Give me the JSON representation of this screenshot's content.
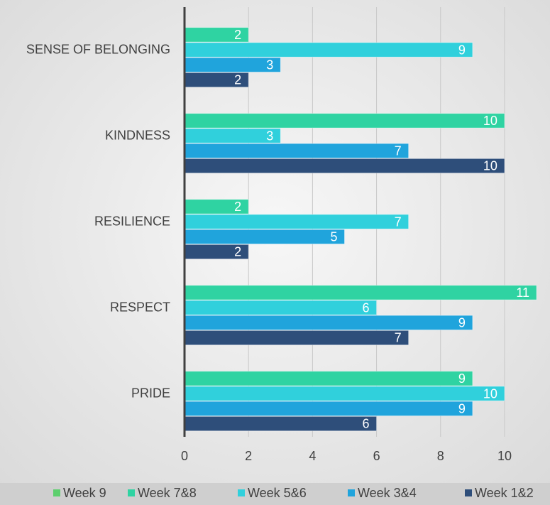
{
  "chart_data": {
    "type": "bar",
    "orientation": "horizontal",
    "categories": [
      "SENSE OF BELONGING",
      "KINDNESS",
      "RESILIENCE",
      "RESPECT",
      "PRIDE"
    ],
    "series": [
      {
        "name": "Week 9",
        "color": "#5dcf6e",
        "values": [
          null,
          null,
          null,
          null,
          null
        ]
      },
      {
        "name": "Week 7&8",
        "color": "#2fd3a2",
        "values": [
          2,
          10,
          2,
          11,
          9
        ]
      },
      {
        "name": "Week 5&6",
        "color": "#30d0dc",
        "values": [
          9,
          3,
          7,
          6,
          10
        ]
      },
      {
        "name": "Week 3&4",
        "color": "#20a4dc",
        "values": [
          3,
          7,
          5,
          9,
          9
        ]
      },
      {
        "name": "Week 1&2",
        "color": "#2e4e7a",
        "values": [
          2,
          10,
          2,
          7,
          6
        ]
      }
    ],
    "xlim": [
      0,
      11.42
    ],
    "xticks": [
      0,
      2,
      4,
      6,
      8,
      10
    ],
    "grid": true,
    "legend": "bottom"
  }
}
